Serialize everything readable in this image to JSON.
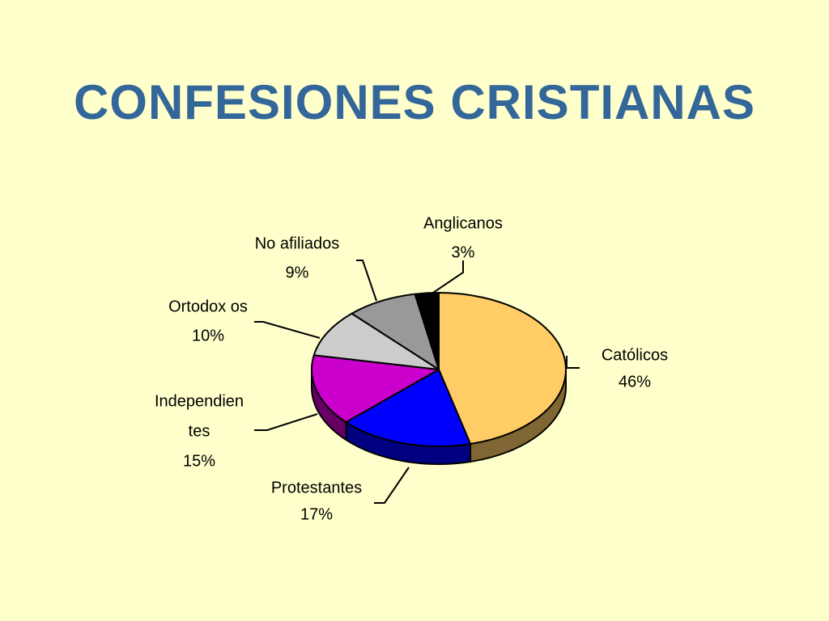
{
  "slide": {
    "title": "CONFESIONES CRISTIANAS"
  },
  "chart_data": {
    "type": "pie",
    "title": "",
    "slices": [
      {
        "name": "Católicos",
        "label_lines": [
          "Católicos"
        ],
        "percent_label": "46%",
        "value": 46,
        "color": "#ffcc66",
        "side_color": "#806633"
      },
      {
        "name": "Protestantes",
        "label_lines": [
          "Protestantes"
        ],
        "percent_label": "17%",
        "value": 17,
        "color": "#0000ff",
        "side_color": "#000080"
      },
      {
        "name": "Independientes",
        "label_lines": [
          "Independien",
          "tes"
        ],
        "percent_label": "15%",
        "value": 15,
        "color": "#cc00cc",
        "side_color": "#660066"
      },
      {
        "name": "Ortodoxos",
        "label_lines": [
          "Ortodox os"
        ],
        "percent_label": "10%",
        "value": 10,
        "color": "#cccccc",
        "side_color": "#666666"
      },
      {
        "name": "No afiliados",
        "label_lines": [
          "No afiliados"
        ],
        "percent_label": "9%",
        "value": 9,
        "color": "#999999",
        "side_color": "#4d4d4d"
      },
      {
        "name": "Anglicanos",
        "label_lines": [
          "Anglicanos"
        ],
        "percent_label": "3%",
        "value": 3,
        "color": "#000000",
        "side_color": "#000000"
      }
    ],
    "legend": "none",
    "style": "3d-pie"
  }
}
